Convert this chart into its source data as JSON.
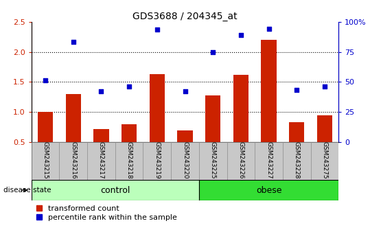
{
  "title": "GDS3688 / 204345_at",
  "categories": [
    "GSM243215",
    "GSM243216",
    "GSM243217",
    "GSM243218",
    "GSM243219",
    "GSM243220",
    "GSM243225",
    "GSM243226",
    "GSM243227",
    "GSM243228",
    "GSM243275"
  ],
  "bar_values": [
    1.0,
    1.3,
    0.72,
    0.8,
    1.63,
    0.7,
    1.28,
    1.62,
    2.2,
    0.83,
    0.95
  ],
  "dot_values": [
    1.53,
    2.17,
    1.35,
    1.43,
    2.37,
    1.35,
    2.0,
    2.28,
    2.38,
    1.37,
    1.43
  ],
  "bar_color": "#CC2200",
  "dot_color": "#0000CC",
  "ylim_left": [
    0.5,
    2.5
  ],
  "ylim_right": [
    0,
    100
  ],
  "yticks_left": [
    0.5,
    1.0,
    1.5,
    2.0,
    2.5
  ],
  "yticks_right": [
    0,
    25,
    50,
    75,
    100
  ],
  "ytick_labels_right": [
    "0",
    "25",
    "50",
    "75",
    "100%"
  ],
  "grid_lines": [
    1.0,
    1.5,
    2.0
  ],
  "n_control": 6,
  "n_obese": 5,
  "control_label": "control",
  "obese_label": "obese",
  "disease_state_label": "disease state",
  "legend_bar_label": "transformed count",
  "legend_dot_label": "percentile rank within the sample",
  "control_color": "#BBFFBB",
  "obese_color": "#33DD33",
  "xlabel_area_color": "#C8C8C8",
  "background_color": "#FFFFFF"
}
